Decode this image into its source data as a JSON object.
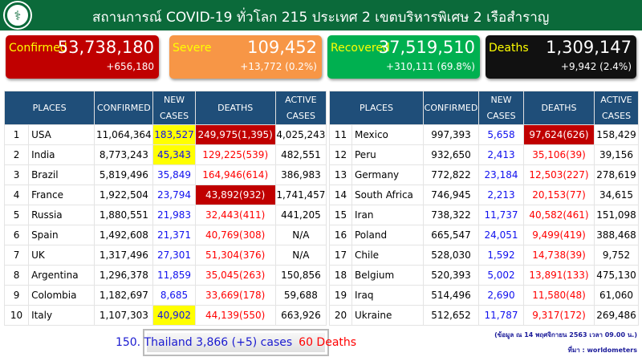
{
  "header": {
    "title": "สถานการณ์ COVID-19 ทั่วโลก 215 ประเทศ 2 เขตบริหารพิเศษ 2 เรือสำราญ",
    "logo": "ministry-of-public-health-logo"
  },
  "cards": [
    {
      "label": "Confirmed",
      "value": "53,738,180",
      "change": "+656,180",
      "color": "#c00000"
    },
    {
      "label": "Severe",
      "value": "109,452",
      "change": "+13,772 (0.2%)",
      "color": "#f79646"
    },
    {
      "label": "Recovered",
      "value": "37,519,510",
      "change": "+310,111 (69.8%)",
      "color": "#00b050"
    },
    {
      "label": "Deaths",
      "value": "1,309,147",
      "change": "+9,942 (2.4%)",
      "color": "#111111"
    }
  ],
  "columns": [
    "PLACES",
    "CONFIRMED",
    "NEW CASES",
    "DEATHS",
    "ACTIVE CASES"
  ],
  "tables": [
    [
      {
        "rank": "1",
        "place": "USA",
        "confirmed": "11,064,364",
        "new": "183,527",
        "deaths": "249,975(1,395)",
        "active": "4,025,243",
        "new_hl": true,
        "deaths_hl": true
      },
      {
        "rank": "2",
        "place": "India",
        "confirmed": "8,773,243",
        "new": "45,343",
        "deaths": "129,225(539)",
        "active": "482,551",
        "new_hl": true
      },
      {
        "rank": "3",
        "place": "Brazil",
        "confirmed": "5,819,496",
        "new": "35,849",
        "deaths": "164,946(614)",
        "active": "386,983"
      },
      {
        "rank": "4",
        "place": "France",
        "confirmed": "1,922,504",
        "new": "23,794",
        "deaths": "43,892(932)",
        "active": "1,741,457",
        "deaths_hl": true
      },
      {
        "rank": "5",
        "place": "Russia",
        "confirmed": "1,880,551",
        "new": "21,983",
        "deaths": "32,443(411)",
        "active": "441,205"
      },
      {
        "rank": "6",
        "place": "Spain",
        "confirmed": "1,492,608",
        "new": "21,371",
        "deaths": "40,769(308)",
        "active": "N/A"
      },
      {
        "rank": "7",
        "place": "UK",
        "confirmed": "1,317,496",
        "new": "27,301",
        "deaths": "51,304(376)",
        "active": "N/A"
      },
      {
        "rank": "8",
        "place": "Argentina",
        "confirmed": "1,296,378",
        "new": "11,859",
        "deaths": "35,045(263)",
        "active": "150,856"
      },
      {
        "rank": "9",
        "place": "Colombia",
        "confirmed": "1,182,697",
        "new": "8,685",
        "deaths": "33,669(178)",
        "active": "59,688"
      },
      {
        "rank": "10",
        "place": "Italy",
        "confirmed": "1,107,303",
        "new": "40,902",
        "deaths": "44,139(550)",
        "active": "663,926",
        "new_hl": true
      }
    ],
    [
      {
        "rank": "11",
        "place": "Mexico",
        "confirmed": "997,393",
        "new": "5,658",
        "deaths": "97,624(626)",
        "active": "158,429",
        "deaths_hl": true
      },
      {
        "rank": "12",
        "place": "Peru",
        "confirmed": "932,650",
        "new": "2,413",
        "deaths": "35,106(39)",
        "active": "39,156"
      },
      {
        "rank": "13",
        "place": "Germany",
        "confirmed": "772,822",
        "new": "23,184",
        "deaths": "12,503(227)",
        "active": "278,619"
      },
      {
        "rank": "14",
        "place": "South Africa",
        "confirmed": "746,945",
        "new": "2,213",
        "deaths": "20,153(77)",
        "active": "34,615"
      },
      {
        "rank": "15",
        "place": "Iran",
        "confirmed": "738,322",
        "new": "11,737",
        "deaths": "40,582(461)",
        "active": "151,098"
      },
      {
        "rank": "16",
        "place": "Poland",
        "confirmed": "665,547",
        "new": "24,051",
        "deaths": "9,499(419)",
        "active": "388,468"
      },
      {
        "rank": "17",
        "place": "Chile",
        "confirmed": "528,030",
        "new": "1,592",
        "deaths": "14,738(39)",
        "active": "9,752"
      },
      {
        "rank": "18",
        "place": "Belgium",
        "confirmed": "520,393",
        "new": "5,002",
        "deaths": "13,891(133)",
        "active": "475,130"
      },
      {
        "rank": "19",
        "place": "Iraq",
        "confirmed": "514,496",
        "new": "2,690",
        "deaths": "11,580(48)",
        "active": "61,060"
      },
      {
        "rank": "20",
        "place": "Ukraine",
        "confirmed": "512,652",
        "new": "11,787",
        "deaths": "9,317(172)",
        "active": "269,486"
      }
    ]
  ],
  "footer": {
    "thailand": "150. Thailand 3,866 (+5)  cases",
    "thailand_deaths": "60 Deaths",
    "date_note": "(ข้อมูล ณ 14 พฤศจิกายน 2563 เวลา 09.00 น.)",
    "source": "ที่มา : worldometers"
  }
}
